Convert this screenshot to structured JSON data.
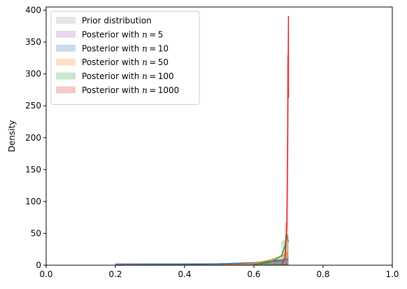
{
  "chart_data": {
    "type": "area",
    "title": "",
    "xlabel": "",
    "ylabel": "Density",
    "xlim": [
      0.0,
      1.0
    ],
    "ylim": [
      0,
      405
    ],
    "xticks": [
      0.0,
      0.2,
      0.4,
      0.6,
      0.8,
      1.0
    ],
    "xtick_labels": [
      "0.0",
      "0.2",
      "0.4",
      "0.6",
      "0.8",
      "1.0"
    ],
    "yticks": [
      0,
      50,
      100,
      150,
      200,
      250,
      300,
      350,
      400
    ],
    "ytick_labels": [
      "0",
      "50",
      "100",
      "150",
      "200",
      "250",
      "300",
      "350",
      "400"
    ],
    "grid": false,
    "legend_position": "top-left",
    "series": [
      {
        "name": "Prior distribution",
        "legend_prefix": "Prior distribution",
        "legend_n": "",
        "color": "#999999",
        "line_color": "#7f7f7f",
        "x": [
          0.2,
          0.3,
          0.4,
          0.5,
          0.6,
          0.7
        ],
        "y": [
          2,
          2,
          2,
          2,
          2,
          2
        ],
        "hist": [
          [
            0.2,
            0.3,
            2
          ],
          [
            0.3,
            0.4,
            2
          ],
          [
            0.4,
            0.5,
            2
          ],
          [
            0.5,
            0.6,
            2
          ],
          [
            0.6,
            0.7,
            2
          ]
        ]
      },
      {
        "name": "Posterior with n = 5",
        "legend_prefix": "Posterior with ",
        "legend_n": "5",
        "color": "#9467bd",
        "line_color": "#9467bd",
        "x": [
          0.2,
          0.3,
          0.4,
          0.5,
          0.6,
          0.65,
          0.7
        ],
        "y": [
          0.5,
          0.8,
          1.2,
          2,
          3.5,
          5,
          6.5
        ],
        "hist": [
          [
            0.2,
            0.3,
            0.5
          ],
          [
            0.3,
            0.4,
            0.8
          ],
          [
            0.4,
            0.5,
            1.2
          ],
          [
            0.5,
            0.6,
            2
          ],
          [
            0.6,
            0.65,
            3.5
          ],
          [
            0.65,
            0.7,
            6
          ]
        ]
      },
      {
        "name": "Posterior with n = 10",
        "legend_prefix": "Posterior with ",
        "legend_n": "10",
        "color": "#1f77b4",
        "line_color": "#1f77b4",
        "x": [
          0.2,
          0.3,
          0.4,
          0.5,
          0.6,
          0.65,
          0.68,
          0.7
        ],
        "y": [
          0.2,
          0.5,
          1,
          2,
          4,
          6,
          8,
          10
        ],
        "hist": [
          [
            0.3,
            0.4,
            0.5
          ],
          [
            0.4,
            0.5,
            1
          ],
          [
            0.5,
            0.6,
            2
          ],
          [
            0.6,
            0.65,
            4.5
          ],
          [
            0.65,
            0.7,
            9
          ]
        ]
      },
      {
        "name": "Posterior with n = 50",
        "legend_prefix": "Posterior with ",
        "legend_n": "50",
        "color": "#ff7f0e",
        "line_color": "#ff7f0e",
        "x": [
          0.48,
          0.55,
          0.6,
          0.64,
          0.67,
          0.69,
          0.7
        ],
        "y": [
          0.2,
          1,
          3,
          7,
          12,
          17,
          21
        ],
        "hist": [
          [
            0.5,
            0.6,
            1.5
          ],
          [
            0.6,
            0.64,
            4
          ],
          [
            0.64,
            0.67,
            9
          ],
          [
            0.67,
            0.69,
            15
          ],
          [
            0.69,
            0.7,
            20
          ]
        ]
      },
      {
        "name": "Posterior with n = 100",
        "legend_prefix": "Posterior with ",
        "legend_n": "100",
        "color": "#2ca02c",
        "line_color": "#2ca02c",
        "x": [
          0.6,
          0.65,
          0.68,
          0.69,
          0.695,
          0.7
        ],
        "y": [
          1,
          5,
          15,
          30,
          48,
          36
        ],
        "hist": [
          [
            0.62,
            0.66,
            3
          ],
          [
            0.66,
            0.68,
            10
          ],
          [
            0.68,
            0.69,
            39
          ],
          [
            0.69,
            0.7,
            48
          ]
        ]
      },
      {
        "name": "Posterior with n = 1000",
        "legend_prefix": "Posterior with ",
        "legend_n": "1000",
        "color": "#d62728",
        "line_color": "#d62728",
        "x": [
          0.68,
          0.69,
          0.695,
          0.698,
          0.7,
          0.7
        ],
        "y": [
          0,
          12,
          60,
          210,
          390,
          262
        ],
        "hist": [
          [
            0.69,
            0.695,
            67
          ],
          [
            0.695,
            0.7,
            330
          ]
        ]
      }
    ]
  }
}
